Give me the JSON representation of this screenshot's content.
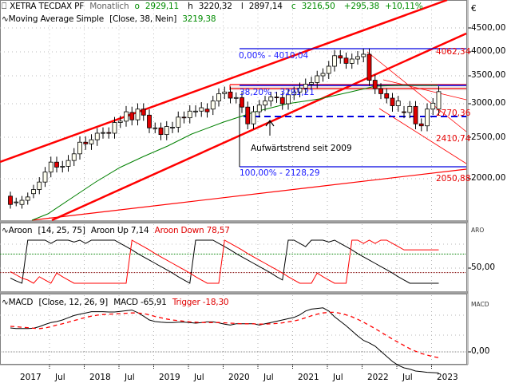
{
  "main_pane": {
    "symbol": "XETRA TECDAX PF",
    "interval": "Monatlich",
    "ohlc": {
      "o_label": "o",
      "o": "2929,11",
      "h_label": "h",
      "h": "3220,32",
      "l_label": "l",
      "l": "2897,14",
      "c_label": "c",
      "c": "3216,50",
      "change": "+295,38",
      "change_pct": "+10,11%"
    },
    "indicator": {
      "name": "Moving Average Simple",
      "params": "[Close, 38, Nein]",
      "value": "3219,38"
    },
    "currency": "€",
    "y_ticks": [
      "4500,00",
      "4000,00",
      "3500,00",
      "3000,00",
      "2500,00",
      "2000,00"
    ],
    "annotations": {
      "fib_0": "0,00% - 4010,04",
      "fib_382": "38,20% - 3291,21",
      "fib_100": "100,00% - 2128,29",
      "level_4062": "4062,34",
      "level_2770": "2770,36",
      "level_2410": "2410,74",
      "level_2050": "2050,88",
      "trend_text": "Aufwärtstrend seit 2009"
    }
  },
  "aroon_pane": {
    "name": "Aroon",
    "params": "[14, 25, 75]",
    "up_label": "Aroon Up 7,14",
    "down_label": "Aroon Down 78,57",
    "axis_title": "ARO",
    "y_ticks": [
      "50,00"
    ]
  },
  "macd_pane": {
    "name": "MACD",
    "params": "[Close, 12, 26, 9]",
    "macd_label": "MACD -65,91",
    "trigger_label": "Trigger -18,30",
    "axis_title": "MACD",
    "y_ticks": [
      "0,00"
    ]
  },
  "x_axis": {
    "labels": [
      "2017",
      "Jul",
      "2018",
      "Jul",
      "2019",
      "Jul",
      "2020",
      "Jul",
      "2021",
      "Jul",
      "2022",
      "Jul",
      "2023"
    ]
  },
  "colors": {
    "up_candle": "#fffff0",
    "down_candle": "#e00000",
    "trend_line": "#ff0000",
    "ma_line": "#008000",
    "fib_line": "#0000e0",
    "aroon_up": "#000000",
    "aroon_down": "#ff0000",
    "macd": "#000000",
    "trigger": "#ff0000"
  },
  "chart_data": [
    {
      "type": "candlestick",
      "title": "XETRA TECDAX PF - Monatlich",
      "ylabel": "€",
      "ylim": [
        1700,
        4700
      ],
      "x": [
        "2016-10",
        "2016-11",
        "2016-12",
        "2017-01",
        "2017-02",
        "2017-03",
        "2017-04",
        "2017-05",
        "2017-06",
        "2017-07",
        "2017-08",
        "2017-09",
        "2017-10",
        "2017-11",
        "2017-12",
        "2018-01",
        "2018-02",
        "2018-03",
        "2018-04",
        "2018-05",
        "2018-06",
        "2018-07",
        "2018-08",
        "2018-09",
        "2018-10",
        "2018-11",
        "2018-12",
        "2019-01",
        "2019-02",
        "2019-03",
        "2019-04",
        "2019-05",
        "2019-06",
        "2019-07",
        "2019-08",
        "2019-09",
        "2019-10",
        "2019-11",
        "2019-12",
        "2020-01",
        "2020-02",
        "2020-03",
        "2020-04",
        "2020-05",
        "2020-06",
        "2020-07",
        "2020-08",
        "2020-09",
        "2020-10",
        "2020-11",
        "2020-12",
        "2021-01",
        "2021-02",
        "2021-03",
        "2021-04",
        "2021-05",
        "2021-06",
        "2021-07",
        "2021-08",
        "2021-09",
        "2021-10",
        "2021-11",
        "2021-12",
        "2022-01",
        "2022-02",
        "2022-03",
        "2022-04",
        "2022-05",
        "2022-06",
        "2022-07",
        "2022-08",
        "2022-09",
        "2022-10",
        "2022-11",
        "2022-12"
      ],
      "open": [
        1790,
        1720,
        1690,
        1740,
        1820,
        1870,
        1960,
        2080,
        2200,
        2140,
        2150,
        2220,
        2300,
        2440,
        2420,
        2470,
        2560,
        2570,
        2560,
        2720,
        2740,
        2870,
        2760,
        2920,
        2830,
        2640,
        2640,
        2540,
        2640,
        2650,
        2800,
        2790,
        2890,
        2890,
        2920,
        2920,
        3050,
        3180,
        3210,
        3100,
        3110,
        2950,
        2700,
        2880,
        2980,
        3050,
        3120,
        3110,
        3000,
        3160,
        3210,
        3280,
        3350,
        3380,
        3500,
        3550,
        3700,
        3920,
        3870,
        3760,
        3850,
        3900,
        3950,
        3420,
        3270,
        3180,
        3100,
        2970,
        2880,
        2870,
        2960,
        2700,
        2670,
        2920,
        2920
      ],
      "close": [
        1690,
        1720,
        1740,
        1780,
        1870,
        1960,
        2080,
        2200,
        2140,
        2150,
        2220,
        2300,
        2440,
        2420,
        2470,
        2560,
        2570,
        2560,
        2720,
        2740,
        2880,
        2760,
        2920,
        2830,
        2640,
        2640,
        2540,
        2660,
        2650,
        2800,
        2790,
        2890,
        2890,
        2940,
        2880,
        3050,
        3180,
        3210,
        3100,
        3110,
        2950,
        2700,
        2880,
        2980,
        3050,
        3120,
        3110,
        3000,
        3160,
        3210,
        3280,
        3350,
        3380,
        3500,
        3550,
        3700,
        3920,
        3870,
        3760,
        3850,
        3900,
        3950,
        3420,
        3270,
        3180,
        3100,
        2970,
        3050,
        2870,
        2960,
        2700,
        2670,
        2920,
        3010,
        3216
      ]
    },
    {
      "type": "line",
      "title": "Aroon [14, 25, 75]",
      "ylim": [
        0,
        100
      ],
      "series": [
        {
          "name": "Aroon Up",
          "values": [
            18,
            12,
            7,
            100,
            100,
            100,
            100,
            93,
            100,
            100,
            100,
            96,
            100,
            93,
            100,
            100,
            100,
            100,
            100,
            93,
            86,
            79,
            71,
            64,
            57,
            50,
            43,
            36,
            29,
            21,
            14,
            7,
            100,
            100,
            100,
            100,
            93,
            86,
            79,
            71,
            64,
            57,
            50,
            43,
            36,
            29,
            21,
            14,
            100,
            100,
            93,
            86,
            100,
            100,
            100,
            96,
            100,
            93,
            86,
            79,
            71,
            64,
            57,
            50,
            43,
            36,
            29,
            21,
            14,
            7,
            7,
            7,
            7,
            7,
            7
          ]
        },
        {
          "name": "Aroon Down",
          "values": [
            32,
            25,
            18,
            14,
            7,
            21,
            14,
            7,
            29,
            21,
            14,
            7,
            7,
            7,
            7,
            7,
            7,
            7,
            7,
            7,
            7,
            100,
            93,
            86,
            79,
            71,
            64,
            57,
            50,
            43,
            36,
            29,
            21,
            14,
            7,
            7,
            7,
            100,
            93,
            86,
            79,
            71,
            64,
            57,
            50,
            43,
            36,
            29,
            21,
            14,
            7,
            7,
            7,
            29,
            21,
            14,
            7,
            7,
            7,
            100,
            100,
            93,
            100,
            93,
            100,
            100,
            93,
            86,
            79,
            79,
            79,
            79,
            79,
            79,
            79
          ]
        }
      ],
      "reference_lines": [
        70,
        30
      ]
    },
    {
      "type": "line",
      "title": "MACD [Close, 12, 26, 9]",
      "series": [
        {
          "name": "MACD",
          "values": [
            75,
            73,
            73,
            73,
            74,
            79,
            86,
            92,
            95,
            100,
            107,
            114,
            118,
            122,
            126,
            126,
            126,
            125,
            125,
            127,
            129,
            131,
            123,
            112,
            100,
            95,
            93,
            92,
            92,
            93,
            93,
            92,
            90,
            92,
            94,
            94,
            91,
            87,
            84,
            88,
            88,
            88,
            88,
            84,
            88,
            92,
            96,
            100,
            104,
            108,
            116,
            128,
            134,
            136,
            138,
            128,
            110,
            96,
            82,
            66,
            50,
            36,
            28,
            18,
            2,
            -14,
            -30,
            -42,
            -50,
            -54,
            -60,
            -62,
            -64,
            -65,
            -66
          ]
        },
        {
          "name": "Trigger",
          "values": [
            80,
            79,
            77,
            76,
            74,
            73,
            75,
            79,
            84,
            88,
            93,
            98,
            103,
            108,
            112,
            115,
            117,
            118,
            119,
            120,
            121,
            122,
            122,
            120,
            116,
            111,
            107,
            103,
            100,
            98,
            96,
            94,
            93,
            92,
            92,
            92,
            92,
            91,
            90,
            89,
            88,
            88,
            88,
            87,
            87,
            88,
            89,
            91,
            94,
            97,
            101,
            107,
            113,
            118,
            122,
            124,
            124,
            121,
            116,
            110,
            102,
            93,
            83,
            73,
            62,
            51,
            40,
            30,
            20,
            10,
            2,
            -5,
            -10,
            -15,
            -18
          ]
        }
      ],
      "reference_lines": [
        0
      ]
    }
  ]
}
